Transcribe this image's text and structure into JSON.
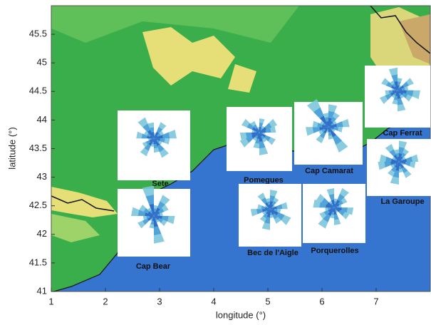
{
  "map": {
    "xlabel": "longitude (°)",
    "ylabel": "latitude (°)",
    "xlim": [
      1,
      8
    ],
    "ylim": [
      41,
      46
    ],
    "xticks": [
      1,
      2,
      3,
      4,
      5,
      6,
      7
    ],
    "yticks": [
      41,
      41.5,
      42,
      42.5,
      43,
      43.5,
      44,
      44.5,
      45,
      45.5
    ],
    "stations": [
      {
        "name": "Sete"
      },
      {
        "name": "Pomegues"
      },
      {
        "name": "Cap Camarat"
      },
      {
        "name": "Cap Ferrat"
      },
      {
        "name": "La Garoupe"
      },
      {
        "name": "Cap Bear"
      },
      {
        "name": "Bec de l'Aigle"
      },
      {
        "name": "Porquerolles"
      }
    ]
  }
}
